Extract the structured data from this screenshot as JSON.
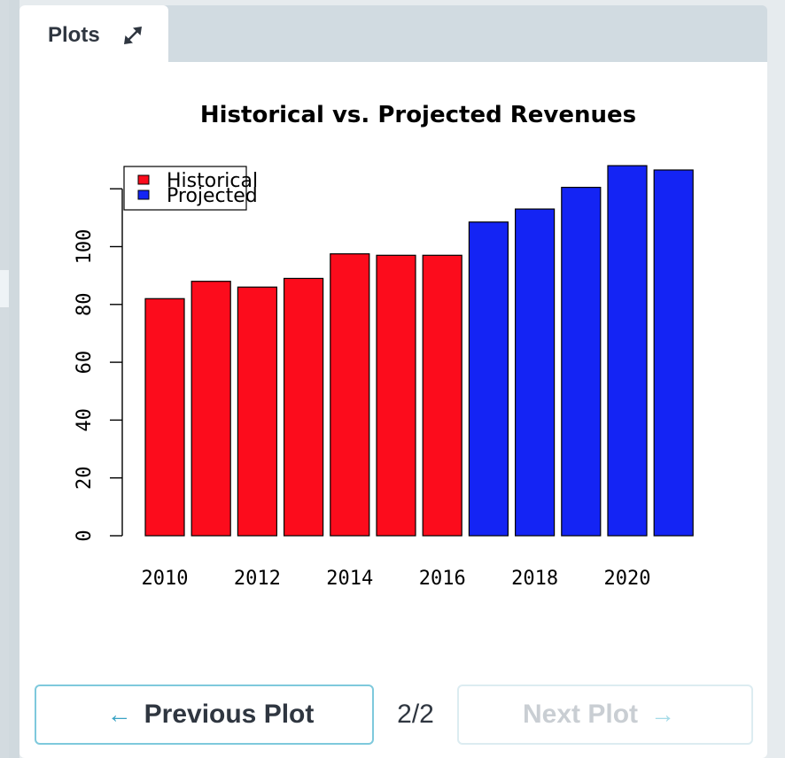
{
  "tab": {
    "label": "Plots",
    "expand_icon": "expand-arrows-icon"
  },
  "navigation": {
    "previous_label": "Previous Plot",
    "next_label": "Next Plot",
    "page_indicator": "2/2",
    "previous_icon": "arrow-left-icon",
    "next_icon": "arrow-right-icon"
  },
  "colors": {
    "historical": "#fc0c1c",
    "projected": "#1424f4",
    "accent": "#3aa3c4"
  },
  "chart_data": {
    "type": "bar",
    "title": "Historical vs. Projected Revenues",
    "xlabel": "",
    "ylabel": "",
    "ylim": [
      0,
      120
    ],
    "yticks": [
      0,
      20,
      40,
      60,
      80,
      100
    ],
    "x_tick_labels": [
      "2010",
      "2012",
      "2014",
      "2016",
      "2018",
      "2020"
    ],
    "categories": [
      "2010",
      "2011",
      "2012",
      "2013",
      "2014",
      "2015",
      "2016",
      "2017",
      "2018",
      "2019",
      "2020",
      "2021"
    ],
    "values": [
      82,
      88,
      86,
      89,
      97.5,
      97,
      97,
      108.5,
      113,
      120.5,
      128,
      126.5
    ],
    "series": [
      {
        "name": "Historical",
        "color": "#fc0c1c",
        "categories": [
          "2010",
          "2011",
          "2012",
          "2013",
          "2014",
          "2015",
          "2016"
        ]
      },
      {
        "name": "Projected",
        "color": "#1424f4",
        "categories": [
          "2017",
          "2018",
          "2019",
          "2020",
          "2021"
        ]
      }
    ],
    "legend": {
      "position": "top-left",
      "entries": [
        "Historical",
        "Projected"
      ]
    },
    "grid": false
  }
}
